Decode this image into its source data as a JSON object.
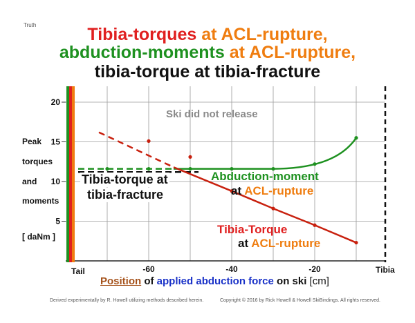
{
  "corner_label": "Truth",
  "title": {
    "line1": {
      "part1": "Tibia-torques",
      "part2": " at ACL-rupture,"
    },
    "line2": {
      "part1": "abduction-moments",
      "part2": " at ACL-rupture,"
    },
    "line3": "tibia-torque at tibia-fracture"
  },
  "footer": {
    "left": "Derived experimentally by R. Howell utilizing methods described herein.",
    "right": "Copyright © 2016 by Rick Howell & Howell SkiBindings.   All rights reserved."
  },
  "colors": {
    "red": "#e02020",
    "darkred": "#c02010",
    "green": "#1e9120",
    "orange": "#ef7d10",
    "black": "#111111",
    "xlabel_blue": "#1a32c8",
    "xlabel_brown": "#a5521b"
  },
  "chart_data": {
    "type": "line",
    "xlim": [
      -80,
      -3
    ],
    "ylim": [
      0,
      22
    ],
    "grid": true,
    "x_ticks": [
      -60,
      -40,
      -20
    ],
    "y_ticks": [
      5,
      10,
      15,
      20
    ],
    "y_axis_label": [
      "Peak",
      "torques",
      "and",
      "moments",
      "[ daNm ]"
    ],
    "x_axis_label": {
      "part1": "Position",
      "part2": " of ",
      "part3": "applied abduction force",
      "part4": " on ski ",
      "part5": "[cm]"
    },
    "x_end_labels": {
      "left": "Tail",
      "right": "Tibia"
    },
    "annotation": "Ski did not release",
    "series": [
      {
        "name": "Tibia-Torque at ACL-rupture",
        "color": "#c8200e",
        "dashed_x": [
          -72,
          -60,
          -50,
          -54
        ],
        "dashed_y": [
          16.2,
          15.1,
          13.1,
          11.8
        ],
        "solid_x": [
          -54,
          -40,
          -30,
          -20,
          -10
        ],
        "solid_y": [
          11.8,
          8.8,
          6.6,
          4.5,
          2.3
        ],
        "labels": {
          "line1": "Tibia-Torque",
          "line2a": "at ",
          "line2b": "ACL-rupture"
        }
      },
      {
        "name": "Abduction-moment at ACL-rupture",
        "color": "#1e9120",
        "dashed_x": [
          -77,
          -70,
          -60,
          -54
        ],
        "dashed_y": [
          11.6,
          11.6,
          11.6,
          11.6
        ],
        "solid_x": [
          -54,
          -50,
          -40,
          -30,
          -20,
          -10
        ],
        "solid_y": [
          11.6,
          11.6,
          11.6,
          11.6,
          12.2,
          15.5
        ],
        "labels": {
          "line1": "Abduction-moment",
          "line2a": "at ",
          "line2b": "ACL-rupture"
        }
      },
      {
        "name": "Tibia-torque at tibia-fracture",
        "color": "#111111",
        "dashed_x": [
          -77,
          -48
        ],
        "dashed_y": [
          11.2,
          11.2
        ],
        "labels": {
          "line1": "Tibia-torque at",
          "line2": "tibia-fracture"
        }
      }
    ]
  }
}
